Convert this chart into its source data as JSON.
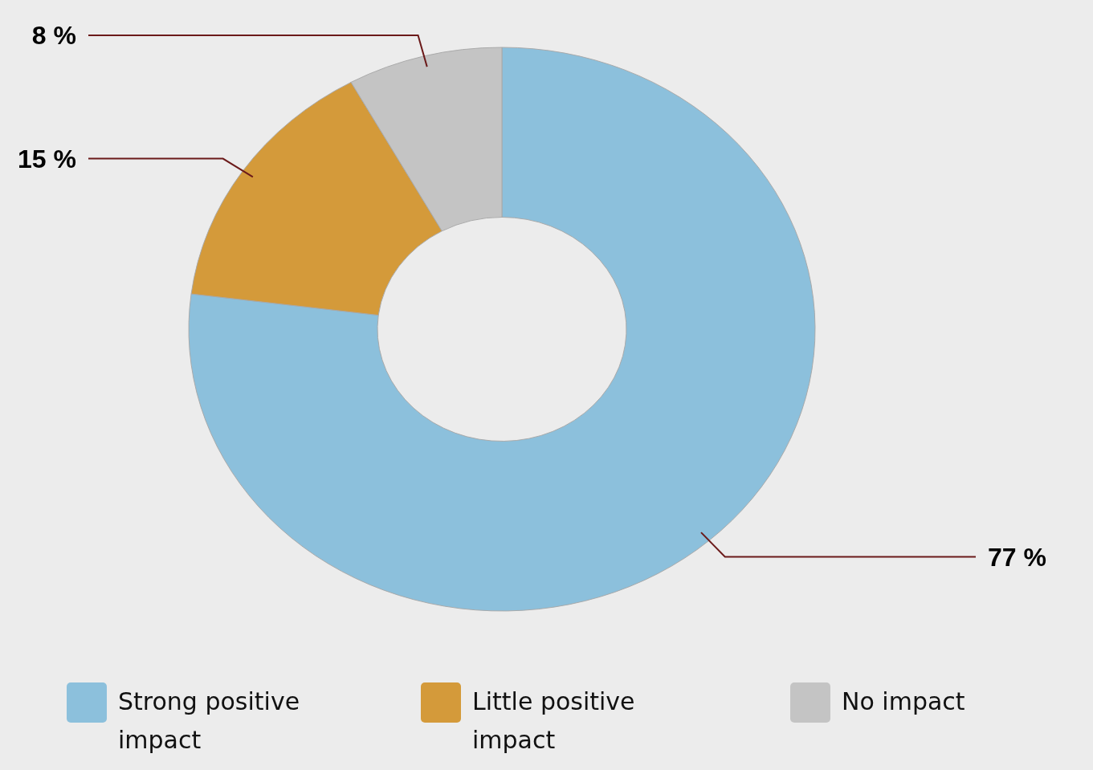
{
  "chart_data": {
    "type": "donut",
    "categories": [
      "Strong positive impact",
      "Little positive impact",
      "No impact"
    ],
    "values": [
      77,
      15,
      8
    ],
    "colors": [
      "#8cc0dc",
      "#d49a3a",
      "#c4c4c4"
    ],
    "value_labels": [
      "77 %",
      "15 %",
      "8 %"
    ],
    "legend": "bottom"
  }
}
